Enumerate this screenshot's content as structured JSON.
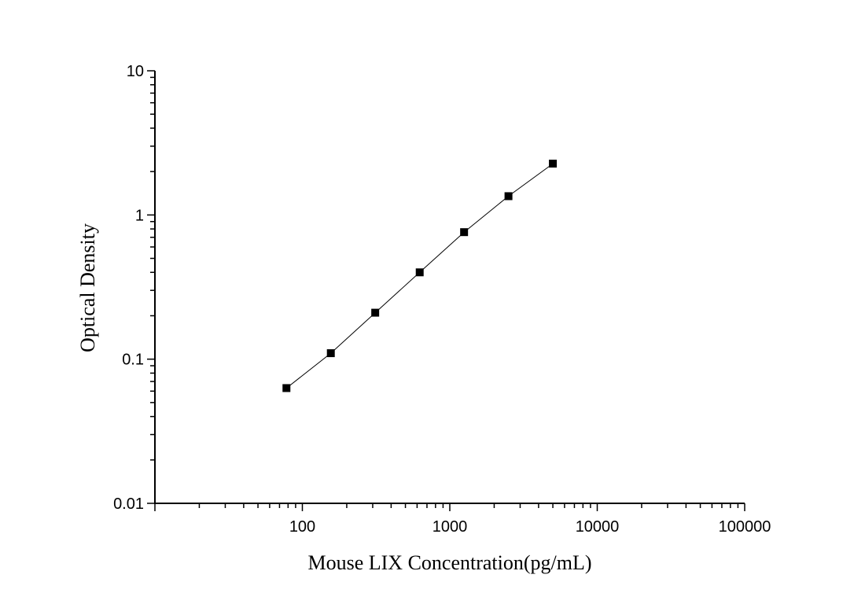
{
  "chart_data": {
    "type": "line",
    "title": "",
    "xlabel": "Mouse LIX Concentration(pg/mL)",
    "ylabel": "Optical Density",
    "x_scale": "log",
    "y_scale": "log",
    "xlim": [
      10,
      100000
    ],
    "ylim": [
      0.01,
      10
    ],
    "x_ticks": [
      100,
      1000,
      10000,
      100000
    ],
    "x_tick_labels": [
      "100",
      "1000",
      "10000",
      "100000"
    ],
    "y_ticks": [
      0.01,
      0.1,
      1,
      10
    ],
    "y_tick_labels": [
      "0.01",
      "0.1",
      "1",
      "10"
    ],
    "grid": false,
    "legend": "none",
    "marker": "square",
    "color": "#000000",
    "series": [
      {
        "x": [
          78,
          156,
          312,
          625,
          1250,
          2500,
          5000
        ],
        "y": [
          0.063,
          0.11,
          0.21,
          0.4,
          0.76,
          1.35,
          2.27
        ]
      }
    ]
  }
}
